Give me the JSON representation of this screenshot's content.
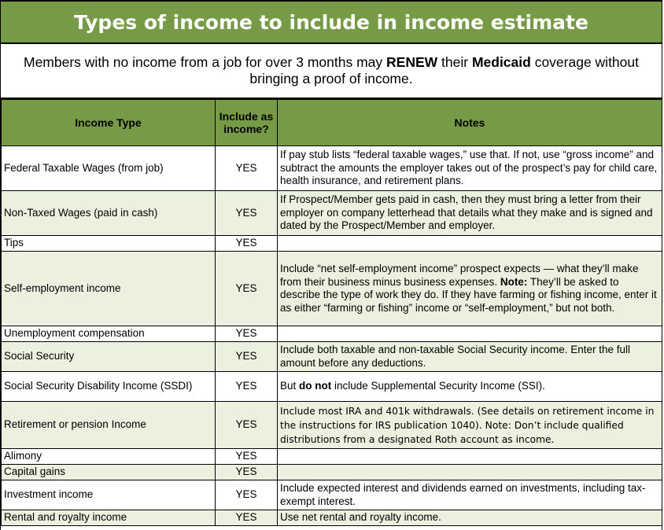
{
  "title": "Types of income to include in income estimate",
  "subtitle": {
    "part1": "Members with no income from a job for over 3 months may ",
    "renew": "RENEW",
    "part2": " their ",
    "medicaid": "Medicaid",
    "part3": " coverage without bringing a proof of income."
  },
  "headers": {
    "income_type": "Income Type",
    "include": "Include as income?",
    "notes": "Notes"
  },
  "rows": [
    {
      "type": "Federal Taxable Wages (from job)",
      "include": "YES",
      "notes": "If pay stub lists “federal taxable wages,” use that. If not, use “gross income” and subtract the amounts the employer takes out of the prospect’s pay for child care, health insurance, and retirement plans."
    },
    {
      "type": "Non-Taxed Wages (paid in cash)",
      "include": "YES",
      "notes": "If Prospect/Member gets paid in cash, then they must bring a letter from their employer on company letterhead that details what they make and is signed and dated by the Prospect/Member and employer."
    },
    {
      "type": "Tips",
      "include": "YES",
      "notes": ""
    },
    {
      "type": "Self-employment income",
      "include": "YES",
      "notes_a": "Include “net self-employment income” prospect expects — what they’ll make from their business minus business expenses. ",
      "notes_bold": "Note:",
      "notes_b": " They’ll be asked to describe the type of work they do. If they have farming or fishing income, enter it as either “farming or fishing” income or “self-employment,” but not both."
    },
    {
      "type": "Unemployment compensation",
      "include": "YES",
      "notes": ""
    },
    {
      "type": "Social Security",
      "include": "YES",
      "notes": "Include both taxable and non-taxable Social Security income. Enter the full amount before any deductions."
    },
    {
      "type": "Social Security Disability Income (SSDI)",
      "include": "YES",
      "notes_a": "But ",
      "notes_bold": "do not",
      "notes_b": " include Supplemental Security Income (SSI)."
    },
    {
      "type": "Retirement or pension Income",
      "include": "YES",
      "notes": "Include most IRA and 401k withdrawals. (See details on retirement income in the instructions for IRS publication 1040). Note: Don’t include qualified distributions from a designated Roth account as income."
    },
    {
      "type": "Alimony",
      "include": "YES",
      "notes": ""
    },
    {
      "type": "Capital gains",
      "include": "YES",
      "notes": ""
    },
    {
      "type": "Investment income",
      "include": "YES",
      "notes": "Include expected interest and dividends earned on investments, including tax-exempt interest."
    },
    {
      "type": "Rental and royalty income",
      "include": "YES",
      "notes": "Use net rental and royalty income."
    }
  ]
}
